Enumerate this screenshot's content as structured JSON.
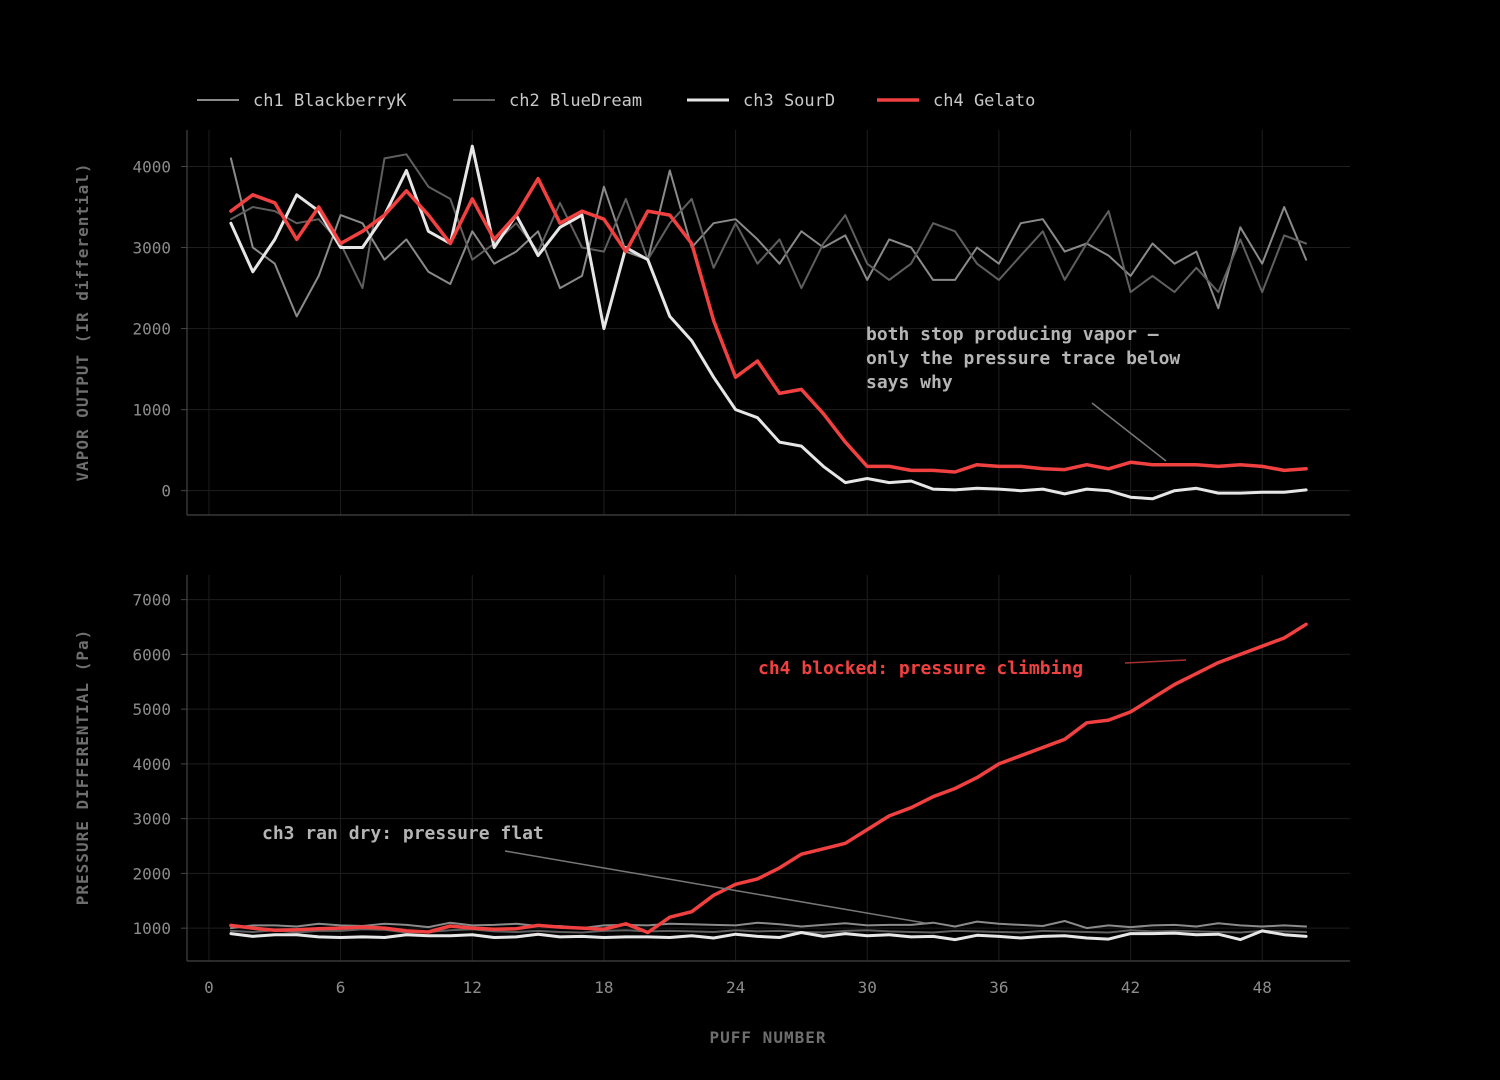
{
  "chart_data": {
    "type": "line",
    "xlabel": "PUFF NUMBER",
    "x": [
      1,
      2,
      3,
      4,
      5,
      6,
      7,
      8,
      9,
      10,
      11,
      12,
      13,
      14,
      15,
      16,
      17,
      18,
      19,
      20,
      21,
      22,
      23,
      24,
      25,
      26,
      27,
      28,
      29,
      30,
      31,
      32,
      33,
      34,
      35,
      36,
      37,
      38,
      39,
      40,
      41,
      42,
      43,
      44,
      45,
      46,
      47,
      48,
      49,
      50
    ],
    "xlim": [
      -1,
      52
    ],
    "xticks": [
      "0",
      "6",
      "12",
      "18",
      "24",
      "30",
      "36",
      "42",
      "48"
    ],
    "legend": {
      "placement": "top-left",
      "entries": [
        {
          "name": "ch1 BlackberryK",
          "color": "#8a8a8a",
          "width": 2
        },
        {
          "name": "ch2 BlueDream",
          "color": "#5f5f5f",
          "width": 2
        },
        {
          "name": "ch3 SourD",
          "color": "#e6e6e6",
          "width": 3
        },
        {
          "name": "ch4 Gelato",
          "color": "#f04040",
          "width": 3.5
        }
      ]
    },
    "panels": [
      {
        "ylabel": "VAPOR OUTPUT  (IR differential)",
        "ylim": [
          -300,
          4450
        ],
        "yticks": [
          0,
          1000,
          2000,
          3000,
          4000
        ],
        "grid": true,
        "series": [
          {
            "name": "ch1 BlackberryK",
            "values": [
              4100,
              3000,
              2800,
              2150,
              2650,
              3400,
              3300,
              2850,
              3100,
              2700,
              2550,
              3200,
              2800,
              2950,
              3200,
              2500,
              2650,
              3750,
              2950,
              2850,
              3950,
              3000,
              3300,
              3350,
              3100,
              2800,
              3200,
              3000,
              3150,
              2600,
              3100,
              3000,
              2600,
              2600,
              3000,
              2800,
              3300,
              3350,
              2950,
              3050,
              2900,
              2650,
              3050,
              2800,
              2950,
              2250,
              3250,
              2800,
              3500,
              2850
            ]
          },
          {
            "name": "ch2 BlueDream",
            "values": [
              3350,
              3500,
              3450,
              3300,
              3350,
              3050,
              2500,
              4100,
              4150,
              3750,
              3600,
              2850,
              3050,
              3300,
              2950,
              3550,
              3000,
              2950,
              3600,
              2850,
              3300,
              3600,
              2750,
              3300,
              2800,
              3100,
              2500,
              3050,
              3400,
              2800,
              2600,
              2800,
              3300,
              3200,
              2800,
              2600,
              2900,
              3200,
              2600,
              3050,
              3450,
              2450,
              2650,
              2450,
              2750,
              2450,
              3100,
              2450,
              3150,
              3050
            ]
          },
          {
            "name": "ch3 SourD",
            "values": [
              3300,
              2700,
              3100,
              3650,
              3450,
              3000,
              3000,
              3400,
              3950,
              3200,
              3050,
              4250,
              3000,
              3400,
              2900,
              3250,
              3400,
              2000,
              3000,
              2850,
              2150,
              1850,
              1400,
              1000,
              900,
              600,
              550,
              300,
              100,
              150,
              100,
              120,
              20,
              10,
              30,
              20,
              0,
              20,
              -40,
              20,
              0,
              -80,
              -100,
              0,
              30,
              -30,
              -30,
              -20,
              -20,
              10
            ]
          },
          {
            "name": "ch4 Gelato",
            "values": [
              3450,
              3650,
              3550,
              3100,
              3500,
              3050,
              3200,
              3400,
              3700,
              3400,
              3050,
              3600,
              3100,
              3400,
              3850,
              3300,
              3450,
              3350,
              2950,
              3450,
              3400,
              3050,
              2100,
              1400,
              1600,
              1200,
              1250,
              950,
              600,
              300,
              300,
              250,
              250,
              230,
              320,
              300,
              300,
              270,
              260,
              320,
              270,
              350,
              320,
              320,
              320,
              300,
              320,
              300,
              250,
              270
            ]
          }
        ],
        "annotations": [
          {
            "lines": [
              "both stop producing vapor —",
              "only the pressure trace below",
              "says why"
            ],
            "color": "#b4b4b4"
          }
        ]
      },
      {
        "ylabel": "PRESSURE DIFFERENTIAL  (Pa)",
        "ylim": [
          400,
          7450
        ],
        "yticks": [
          1000,
          2000,
          3000,
          4000,
          5000,
          6000,
          7000
        ],
        "grid": true,
        "series": [
          {
            "name": "ch1 BlackberryK",
            "values": [
              1000,
              1050,
              1050,
              1030,
              1080,
              1050,
              1040,
              1080,
              1060,
              1020,
              1100,
              1050,
              1060,
              1080,
              1040,
              1040,
              1000,
              1050,
              1060,
              1050,
              1080,
              1070,
              1060,
              1050,
              1100,
              1070,
              1030,
              1060,
              1090,
              1050,
              1060,
              1060,
              1100,
              1030,
              1120,
              1080,
              1060,
              1040,
              1130,
              1000,
              1050,
              1020,
              1050,
              1060,
              1030,
              1090,
              1050,
              1030,
              1050,
              1030
            ]
          },
          {
            "name": "ch2 BlueDream",
            "values": [
              950,
              930,
              960,
              920,
              950,
              950,
              980,
              970,
              920,
              930,
              960,
              980,
              940,
              930,
              950,
              930,
              920,
              950,
              960,
              940,
              950,
              940,
              930,
              960,
              940,
              950,
              930,
              920,
              950,
              960,
              940,
              930,
              920,
              950,
              940,
              930,
              920,
              950,
              940,
              930,
              920,
              960,
              940,
              950,
              940,
              930,
              920,
              950,
              940,
              930
            ]
          },
          {
            "name": "ch3 SourD",
            "values": [
              900,
              850,
              880,
              880,
              840,
              830,
              840,
              830,
              880,
              860,
              860,
              880,
              830,
              840,
              890,
              840,
              850,
              830,
              840,
              840,
              830,
              860,
              820,
              890,
              850,
              830,
              920,
              850,
              900,
              860,
              880,
              840,
              850,
              790,
              870,
              850,
              820,
              850,
              860,
              820,
              800,
              900,
              900,
              910,
              880,
              890,
              790,
              950,
              880,
              850
            ]
          },
          {
            "name": "ch4 Gelato",
            "values": [
              1050,
              1000,
              960,
              970,
              990,
              1000,
              1020,
              1000,
              950,
              930,
              1040,
              1000,
              980,
              990,
              1050,
              1020,
              1000,
              980,
              1080,
              920,
              1200,
              1300,
              1600,
              1800,
              1900,
              2100,
              2350,
              2450,
              2550,
              2800,
              3050,
              3200,
              3400,
              3550,
              3750,
              4000,
              4150,
              4300,
              4450,
              4750,
              4800,
              4950,
              5200,
              5450,
              5650,
              5850,
              6000,
              6150,
              6300,
              6550
            ]
          }
        ],
        "annotations": [
          {
            "lines": [
              "ch4 blocked: pressure climbing"
            ],
            "color": "#f04040"
          },
          {
            "lines": [
              "ch3 ran dry: pressure flat"
            ],
            "color": "#b4b4b4"
          }
        ]
      }
    ]
  }
}
